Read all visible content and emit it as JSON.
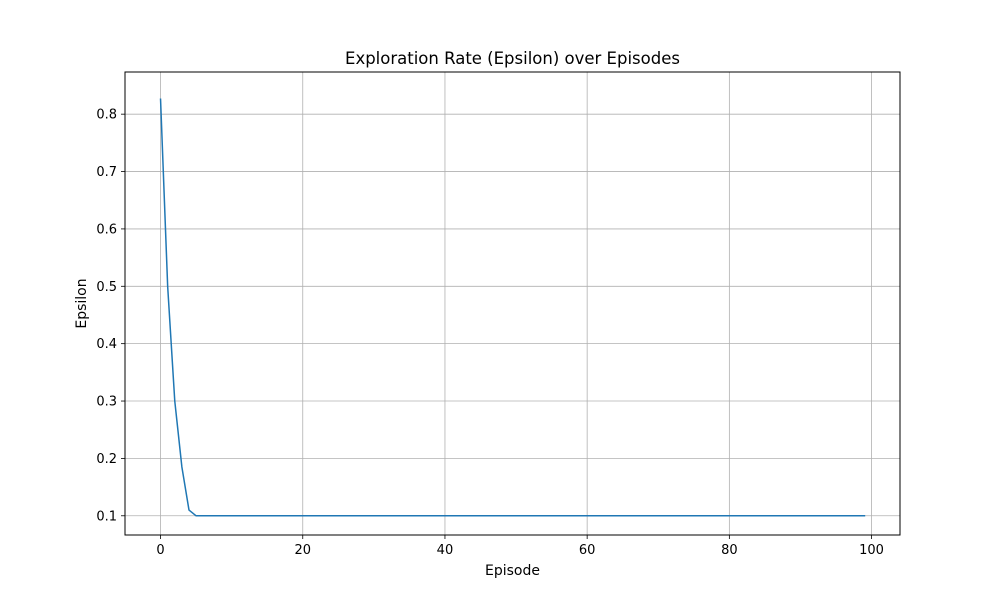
{
  "chart_data": {
    "type": "line",
    "title": "Exploration Rate (Epsilon) over Episodes",
    "xlabel": "Episode",
    "ylabel": "Epsilon",
    "xlim": [
      -5,
      104
    ],
    "ylim": [
      0.0665,
      0.8735
    ],
    "x_ticks": [
      0,
      20,
      40,
      60,
      80,
      100
    ],
    "y_ticks": [
      0.1,
      0.2,
      0.3,
      0.4,
      0.5,
      0.6,
      0.7,
      0.8
    ],
    "x_tick_labels": [
      "0",
      "20",
      "40",
      "60",
      "80",
      "100"
    ],
    "y_tick_labels": [
      "0.1",
      "0.2",
      "0.3",
      "0.4",
      "0.5",
      "0.6",
      "0.7",
      "0.8"
    ],
    "grid": true,
    "series": [
      {
        "color": "#1f77b4",
        "x": [
          0,
          1,
          2,
          3,
          4,
          5,
          99
        ],
        "y": [
          0.826,
          0.5,
          0.3,
          0.185,
          0.11,
          0.1,
          0.1
        ]
      }
    ]
  }
}
